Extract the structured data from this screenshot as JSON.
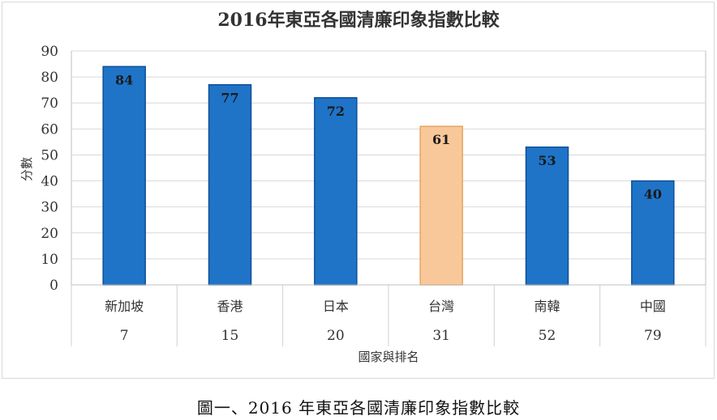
{
  "caption": "圖一、2016 年東亞各國清廉印象指數比較",
  "chart_data": {
    "type": "bar",
    "title": "2016年東亞各國清廉印象指數比較",
    "xlabel": "國家與排名",
    "ylabel": "分數",
    "ylim": [
      0,
      90
    ],
    "yticks": [
      0,
      10,
      20,
      30,
      40,
      50,
      60,
      70,
      80,
      90
    ],
    "grid": true,
    "categories": [
      "新加坡",
      "香港",
      "日本",
      "台灣",
      "南韓",
      "中國"
    ],
    "ranks": [
      "7",
      "15",
      "20",
      "31",
      "52",
      "79"
    ],
    "values": [
      84,
      77,
      72,
      61,
      53,
      40
    ],
    "colors": [
      "#1f74c8",
      "#1f74c8",
      "#1f74c8",
      "#f9c89a",
      "#1f74c8",
      "#1f74c8"
    ],
    "bar_edge_colors": [
      "#0f4f96",
      "#0f4f96",
      "#0f4f96",
      "#e4a464",
      "#0f4f96",
      "#0f4f96"
    ]
  }
}
